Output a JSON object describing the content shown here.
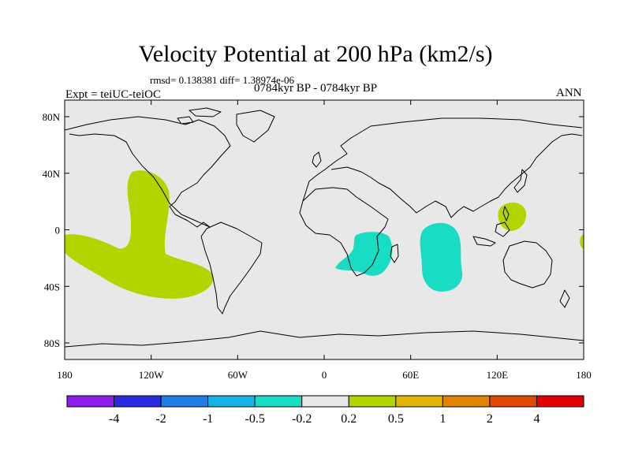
{
  "title": "Velocity Potential at 200 hPa (km2/s)",
  "stats": "rmsd= 0.138381  diff= 1.38974e-06",
  "experiment": "Expt = teiUC-teiOC",
  "period": "0784kyr BP - 0784kyr BP",
  "season": "ANN",
  "map": {
    "background_color": "#e8e8e8",
    "lat_ticks": [
      "80N",
      "40N",
      "0",
      "40S",
      "80S"
    ],
    "lon_ticks": [
      "180",
      "120W",
      "60W",
      "0",
      "60E",
      "120E",
      "180"
    ]
  },
  "regions": [
    {
      "name": "east-pacific-positive",
      "level": "0.2 to 0.5",
      "color": "#b4d400"
    },
    {
      "name": "west-pacific-positive",
      "level": "0.2 to 0.5",
      "color": "#b4d400"
    },
    {
      "name": "dateline-positive",
      "level": "0.2 to 0.5",
      "color": "#b4d400"
    },
    {
      "name": "southern-africa-negative",
      "level": "-0.5 to -0.2",
      "color": "#19dcc4"
    },
    {
      "name": "indian-ocean-negative",
      "level": "-0.5 to -0.2",
      "color": "#19dcc4"
    }
  ],
  "colorbar": {
    "colors": [
      "#8c1ee8",
      "#2a2ae0",
      "#1f7ee6",
      "#14b4e6",
      "#19dcc4",
      "#e8e8e8",
      "#b4d400",
      "#e0b400",
      "#e08400",
      "#e04a00",
      "#e00000"
    ],
    "labels": [
      "-4",
      "-2",
      "-1",
      "-0.5",
      "-0.2",
      "0.2",
      "0.5",
      "1",
      "2",
      "4"
    ]
  }
}
